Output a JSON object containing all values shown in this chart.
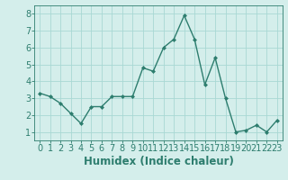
{
  "x": [
    0,
    1,
    2,
    3,
    4,
    5,
    6,
    7,
    8,
    9,
    10,
    11,
    12,
    13,
    14,
    15,
    16,
    17,
    18,
    19,
    20,
    21,
    22,
    23
  ],
  "y": [
    3.3,
    3.1,
    2.7,
    2.1,
    1.5,
    2.5,
    2.5,
    3.1,
    3.1,
    3.1,
    4.8,
    4.6,
    6.0,
    6.5,
    7.9,
    6.5,
    3.8,
    5.4,
    3.0,
    1.0,
    1.1,
    1.4,
    1.0,
    1.7
  ],
  "line_color": "#2d7d6e",
  "marker": "D",
  "marker_size": 2.0,
  "bg_color": "#d4eeeb",
  "grid_color": "#a8d8d4",
  "xlabel": "Humidex (Indice chaleur)",
  "xlim": [
    -0.5,
    23.5
  ],
  "ylim": [
    0.5,
    8.5
  ],
  "yticks": [
    1,
    2,
    3,
    4,
    5,
    6,
    7,
    8
  ],
  "xticks": [
    0,
    1,
    2,
    3,
    4,
    5,
    6,
    7,
    8,
    9,
    10,
    11,
    12,
    13,
    14,
    15,
    16,
    17,
    18,
    19,
    20,
    21,
    22,
    23
  ],
  "tick_color": "#2d7d6e",
  "label_color": "#2d7d6e",
  "xlabel_fontsize": 8.5,
  "tick_fontsize": 7.0,
  "linewidth": 1.0
}
